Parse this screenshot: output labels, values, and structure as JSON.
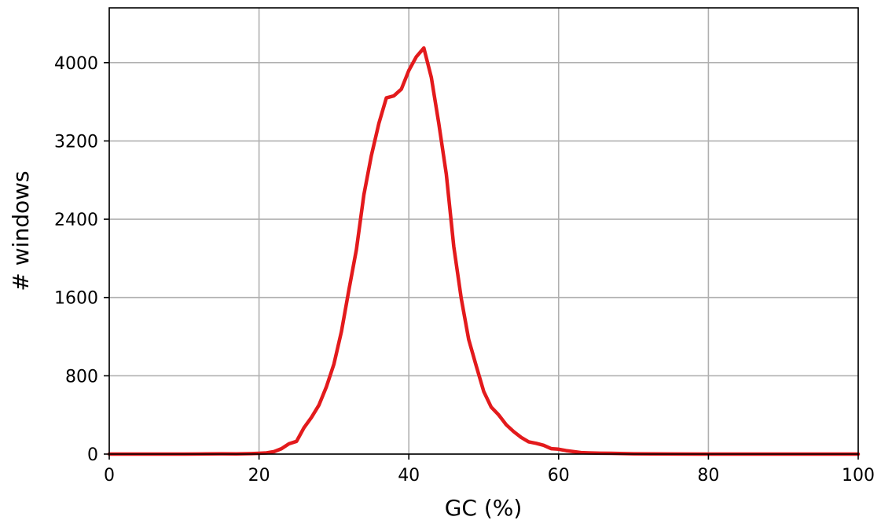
{
  "chart_data": {
    "type": "line",
    "title": "",
    "xlabel": "GC (%)",
    "ylabel": "# windows",
    "xlim": [
      0,
      100
    ],
    "ylim": [
      0,
      4560
    ],
    "xticks": [
      0,
      20,
      40,
      60,
      80,
      100
    ],
    "xtick_labels": [
      "0",
      "20",
      "40",
      "60",
      "80",
      "100"
    ],
    "yticks": [
      0,
      800,
      1600,
      2400,
      3200,
      4000
    ],
    "ytick_labels": [
      "0",
      "800",
      "1600",
      "2400",
      "3200",
      "4000"
    ],
    "grid": true,
    "series": [
      {
        "color": "#e31a1c",
        "x": [
          0,
          5,
          10,
          13,
          15,
          17,
          19,
          20,
          21,
          22,
          23,
          24,
          25,
          26,
          27,
          28,
          29,
          30,
          31,
          32,
          33,
          34,
          35,
          36,
          37,
          38,
          39,
          40,
          41,
          42,
          43,
          44,
          45,
          46,
          47,
          48,
          49,
          50,
          51,
          52,
          53,
          54,
          55,
          56,
          57,
          58,
          59,
          60,
          61,
          62,
          63,
          64,
          65,
          67,
          70,
          75,
          80,
          90,
          100
        ],
        "y": [
          0,
          0,
          0,
          2,
          3,
          2,
          5,
          8,
          12,
          25,
          55,
          105,
          130,
          270,
          375,
          500,
          690,
          920,
          1250,
          1680,
          2090,
          2650,
          3050,
          3380,
          3640,
          3660,
          3730,
          3920,
          4060,
          4150,
          3850,
          3380,
          2860,
          2120,
          1590,
          1170,
          900,
          640,
          480,
          400,
          300,
          230,
          170,
          125,
          110,
          90,
          55,
          50,
          35,
          25,
          15,
          12,
          10,
          8,
          3,
          1,
          0,
          0,
          0
        ]
      }
    ]
  }
}
